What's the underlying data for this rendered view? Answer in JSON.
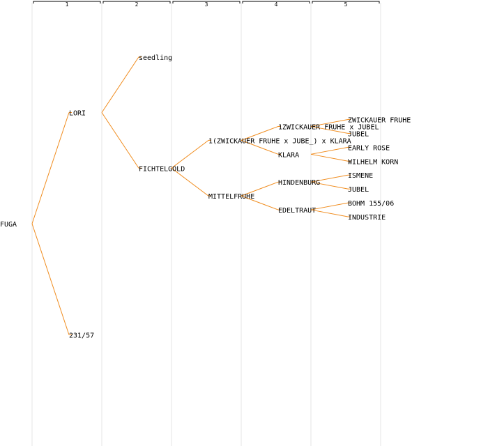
{
  "generations": [
    "1",
    "2",
    "3",
    "4",
    "5"
  ],
  "root": {
    "name": "FUGA",
    "children": [
      {
        "name": "LORI",
        "children": [
          {
            "name": "seedling"
          },
          {
            "name": "FICHTELGOLD",
            "children": [
              {
                "name": "1(ZWICKAUER FRUHE x JUBE_) x KLARA",
                "children": [
                  {
                    "name": "1ZWICKAUER FRUHE x JUBEL",
                    "children": [
                      {
                        "name": "ZWICKAUER FRUHE"
                      },
                      {
                        "name": "JUBEL"
                      }
                    ]
                  },
                  {
                    "name": "KLARA",
                    "children": [
                      {
                        "name": "EARLY ROSE"
                      },
                      {
                        "name": "WILHELM KORN"
                      }
                    ]
                  }
                ]
              },
              {
                "name": "MITTELFRUHE",
                "children": [
                  {
                    "name": "HINDENBURG",
                    "children": [
                      {
                        "name": "ISMENE"
                      },
                      {
                        "name": "JUBEL"
                      }
                    ]
                  },
                  {
                    "name": "EDELTRAUT",
                    "children": [
                      {
                        "name": "BOHM 155/06"
                      },
                      {
                        "name": "INDUSTRIE"
                      }
                    ]
                  }
                ]
              }
            ]
          }
        ]
      },
      {
        "name": "231/57"
      }
    ]
  }
}
